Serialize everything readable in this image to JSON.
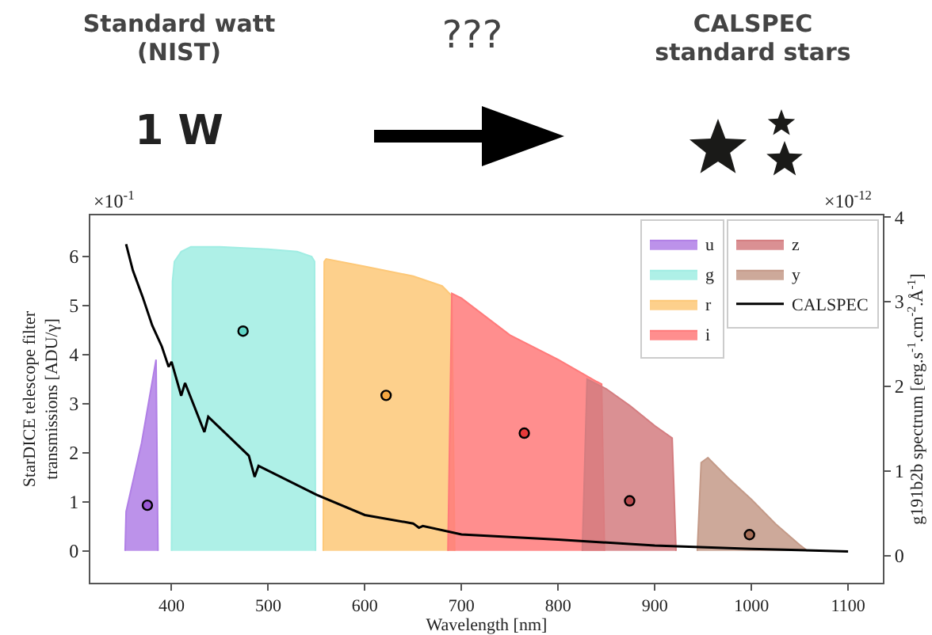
{
  "chart_data": {
    "type": "area",
    "xlabel": "Wavelength [nm]",
    "ylabel": "StarDICE telescope filter transmissions [ADU/γ]",
    "y2label": "g191b2b spectrum [erg.s$^{-1}$.cm$^{-2}$.Å$^{-1}$]",
    "annotations": [
      "Standard watt (NIST)",
      "1 W",
      "???",
      "CALSPEC standard stars",
      "×10$^{-1}$",
      "×10$^{-12}$"
    ],
    "xlim": [
      316,
      1136
    ],
    "xticks": [
      400,
      500,
      600,
      700,
      800,
      900,
      1000,
      1100
    ],
    "ylim": [
      -0.65,
      6.84
    ],
    "yticks": [
      0,
      1,
      2,
      3,
      4,
      5,
      6
    ],
    "y2lim": [
      -0.32,
      4.02
    ],
    "y2ticks": [
      0,
      1,
      2,
      3,
      4
    ],
    "grid": false,
    "legend": "top right",
    "series": [
      {
        "name": "u",
        "color": "#b07fe6",
        "x": [
          352,
          353,
          369,
          384,
          386
        ],
        "values": [
          0,
          0.8,
          2.2,
          3.9,
          0
        ]
      },
      {
        "name": "g",
        "color": "#a0ede3",
        "x": [
          400,
          401,
          403,
          410,
          420,
          450,
          500,
          530,
          545,
          548,
          549
        ],
        "values": [
          0,
          5.5,
          5.9,
          6.1,
          6.2,
          6.2,
          6.15,
          6.1,
          6.0,
          5.9,
          0
        ]
      },
      {
        "name": "r",
        "color": "#fdc878",
        "x": [
          557,
          558,
          560,
          600,
          650,
          680,
          690,
          693
        ],
        "values": [
          0,
          5.9,
          5.95,
          5.8,
          5.6,
          5.4,
          5.2,
          0
        ]
      },
      {
        "name": "i",
        "color": "#ff7a7a",
        "x": [
          686,
          690,
          700,
          750,
          800,
          840,
          845,
          848
        ],
        "values": [
          0,
          5.25,
          5.15,
          4.4,
          3.9,
          3.45,
          3.4,
          0
        ]
      },
      {
        "name": "z",
        "color": "#d47d80",
        "x": [
          825,
          830,
          850,
          875,
          900,
          918,
          922
        ],
        "values": [
          0,
          3.5,
          3.3,
          2.95,
          2.55,
          2.3,
          0
        ]
      },
      {
        "name": "y",
        "color": "#c49a88",
        "x": [
          944,
          948,
          955,
          975,
          1000,
          1025,
          1050,
          1058
        ],
        "values": [
          0,
          1.8,
          1.9,
          1.5,
          1.05,
          0.55,
          0.12,
          0
        ]
      },
      {
        "type": "scatter",
        "marker": "circle",
        "x": [
          375,
          474,
          622,
          765,
          874,
          998
        ],
        "values": [
          0.93,
          4.48,
          3.17,
          2.4,
          1.02,
          0.33
        ],
        "colors": [
          "#9b59d6",
          "#5fd6c6",
          "#f5a742",
          "#e83a3a",
          "#b84a4e",
          "#a86f58"
        ]
      },
      {
        "name": "CALSPEC",
        "type": "line",
        "axis": "y2",
        "color": "#000000",
        "x": [
          353,
          360,
          370,
          380,
          390,
          397,
          400,
          410,
          414,
          434,
          438,
          460,
          480,
          486,
          490,
          550,
          600,
          650,
          656,
          660,
          700,
          800,
          900,
          1000,
          1100
        ],
        "values": [
          3.68,
          3.37,
          3.06,
          2.72,
          2.47,
          2.23,
          2.29,
          1.89,
          2.04,
          1.46,
          1.64,
          1.4,
          1.18,
          0.93,
          1.06,
          0.72,
          0.48,
          0.38,
          0.33,
          0.35,
          0.25,
          0.19,
          0.12,
          0.08,
          0.05
        ]
      }
    ]
  }
}
